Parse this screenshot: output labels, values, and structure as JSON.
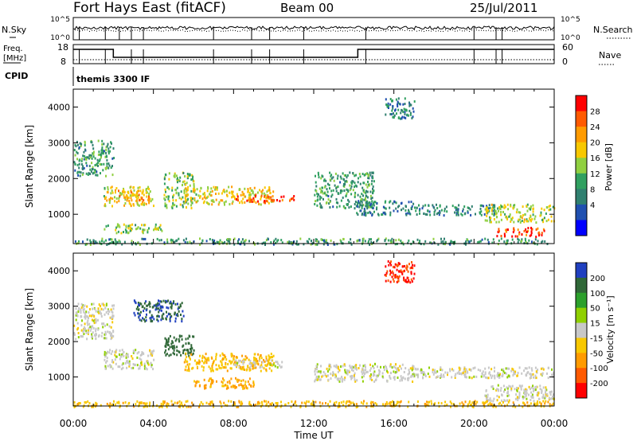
{
  "header": {
    "title": "Fort Hays East (fitACF)",
    "beam": "Beam 00",
    "date": "25/Jul/2011"
  },
  "top_panels": {
    "nsky_label": "N.Sky",
    "nsky_ticks": [
      "10^5",
      "10^0"
    ],
    "nsearch_label": "N.Search",
    "nsearch_ticks": [
      "10^5",
      "10^0"
    ],
    "freq_label_line1": "Freq.",
    "freq_label_line2": "[MHz]",
    "freq_ticks": [
      "18",
      "8"
    ],
    "nave_label": "Nave",
    "nave_ticks": [
      "60",
      "0"
    ],
    "cpid_label": "CPID",
    "cpid_value": "themis 3300 IF"
  },
  "chart_data": [
    {
      "type": "heatmap",
      "panel": "power",
      "xlabel": "",
      "ylabel": "Slant Range [km]",
      "yticks": [
        "4000",
        "3000",
        "2000",
        "1000"
      ],
      "colorbar": {
        "label": "Power [dB]",
        "ticks": [
          "28",
          "24",
          "20",
          "16",
          "12",
          "8",
          "4"
        ],
        "colors": [
          "#ff0000",
          "#ff5a00",
          "#ff9b00",
          "#f8c800",
          "#90d040",
          "#30a060",
          "#308070",
          "#2050b0",
          "#0000ff"
        ]
      },
      "regions": [
        {
          "x": [
            0.0,
            2.0
          ],
          "y": [
            2100,
            3100
          ],
          "level": 10
        },
        {
          "x": [
            1.5,
            4.0
          ],
          "y": [
            1250,
            1800
          ],
          "level": 18
        },
        {
          "x": [
            2.2,
            3.8
          ],
          "y": [
            1400,
            1700
          ],
          "level": 22
        },
        {
          "x": [
            1.5,
            4.5
          ],
          "y": [
            500,
            750
          ],
          "level": 14
        },
        {
          "x": [
            4.5,
            6.0
          ],
          "y": [
            1200,
            2200
          ],
          "level": 14
        },
        {
          "x": [
            5.5,
            10.0
          ],
          "y": [
            1300,
            1800
          ],
          "level": 18
        },
        {
          "x": [
            8.0,
            10.0
          ],
          "y": [
            1350,
            1550
          ],
          "level": 26
        },
        {
          "x": [
            9.5,
            11.0
          ],
          "y": [
            1400,
            1550
          ],
          "level": 28
        },
        {
          "x": [
            12.0,
            15.0
          ],
          "y": [
            1200,
            2200
          ],
          "level": 10
        },
        {
          "x": [
            14.0,
            17.0
          ],
          "y": [
            1000,
            1400
          ],
          "level": 8
        },
        {
          "x": [
            15.5,
            17.0
          ],
          "y": [
            3700,
            4300
          ],
          "level": 8
        },
        {
          "x": [
            17.0,
            21.0
          ],
          "y": [
            1000,
            1300
          ],
          "level": 8
        },
        {
          "x": [
            20.5,
            24.0
          ],
          "y": [
            800,
            1300
          ],
          "level": 16
        },
        {
          "x": [
            21.0,
            23.5
          ],
          "y": [
            400,
            650
          ],
          "level": 28
        },
        {
          "x": [
            0.0,
            24.0
          ],
          "y": [
            180,
            350
          ],
          "level": 10
        }
      ],
      "xlim": [
        0,
        24
      ],
      "ylim": [
        180,
        4500
      ]
    },
    {
      "type": "heatmap",
      "panel": "velocity",
      "xlabel": "Time UT",
      "ylabel": "Slant Range [km]",
      "yticks": [
        "4000",
        "3000",
        "2000",
        "1000"
      ],
      "xticks": [
        "00:00",
        "04:00",
        "08:00",
        "12:00",
        "16:00",
        "20:00",
        "00:00"
      ],
      "colorbar": {
        "label": "Velocity [m s⁻¹]",
        "ticks": [
          "200",
          "100",
          "50",
          "15",
          "-15",
          "-50",
          "-100",
          "-200"
        ],
        "colors": [
          "#2040c0",
          "#306838",
          "#2ca02c",
          "#8fd000",
          "#c8c8c8",
          "#f8c800",
          "#ff9b00",
          "#ff5a00",
          "#ff0000"
        ]
      },
      "regions": [
        {
          "x": [
            0.0,
            2.0
          ],
          "y": [
            2100,
            3100
          ],
          "velocity": 0
        },
        {
          "x": [
            1.5,
            4.0
          ],
          "y": [
            1250,
            1800
          ],
          "velocity": 0
        },
        {
          "x": [
            3.0,
            5.5
          ],
          "y": [
            2600,
            3200
          ],
          "velocity": 200
        },
        {
          "x": [
            4.5,
            6.0
          ],
          "y": [
            1600,
            2200
          ],
          "velocity": 150
        },
        {
          "x": [
            5.5,
            10.0
          ],
          "y": [
            1200,
            1700
          ],
          "velocity": -40
        },
        {
          "x": [
            6.0,
            9.0
          ],
          "y": [
            700,
            1000
          ],
          "velocity": -60
        },
        {
          "x": [
            8.0,
            10.5
          ],
          "y": [
            1300,
            1500
          ],
          "velocity": 0
        },
        {
          "x": [
            12.0,
            17.0
          ],
          "y": [
            900,
            1400
          ],
          "velocity": 0
        },
        {
          "x": [
            15.5,
            17.0
          ],
          "y": [
            3700,
            4300
          ],
          "velocity": -200
        },
        {
          "x": [
            17.0,
            24.0
          ],
          "y": [
            1000,
            1300
          ],
          "velocity": 0
        },
        {
          "x": [
            20.5,
            24.0
          ],
          "y": [
            350,
            800
          ],
          "velocity": 0
        },
        {
          "x": [
            0.0,
            24.0
          ],
          "y": [
            180,
            350
          ],
          "velocity": -40
        }
      ],
      "xlim": [
        0,
        24
      ],
      "ylim": [
        180,
        4500
      ]
    }
  ]
}
